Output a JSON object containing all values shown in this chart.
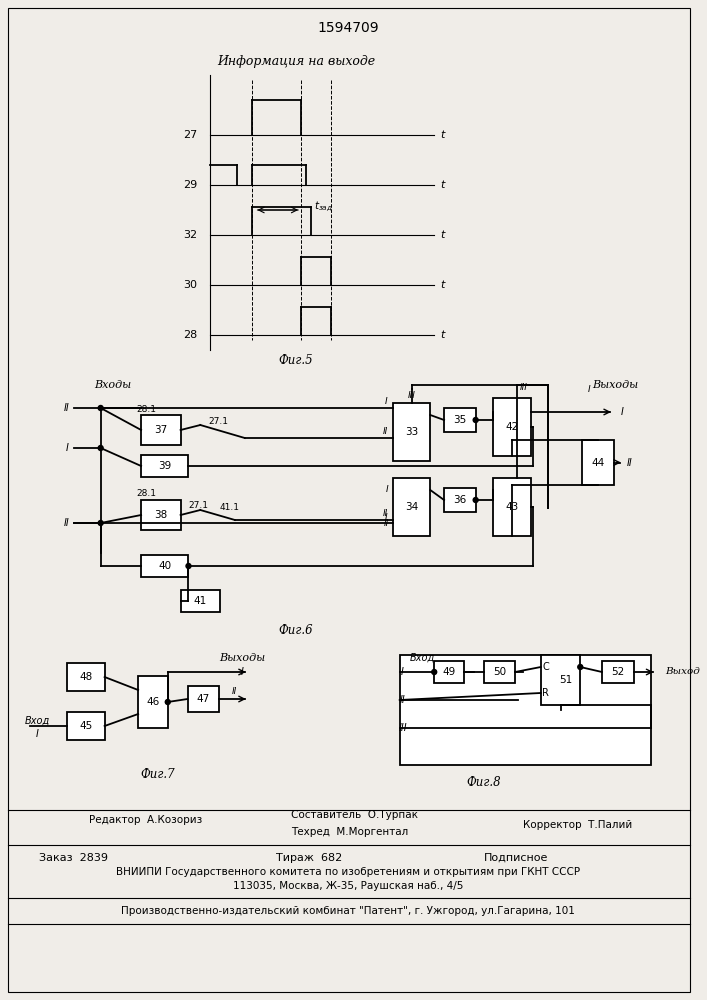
{
  "title": "1594709",
  "fig5_title": "Информация на выходе",
  "fig5_label": "Фиг.5",
  "fig6_label": "Фиг.6",
  "fig7_label": "Фиг.7",
  "fig8_label": "Фиг.8",
  "footer_editor": "Редактор  А.Козориз",
  "footer_comp": "Составитель  О.Турпак",
  "footer_tech": "Техред  М.Моргентал",
  "footer_corr": "Корректор  Т.Палий",
  "footer_order": "Заказ  2839",
  "footer_print": "Тираж  682",
  "footer_sign": "Подписное",
  "footer_vnipi": "ВНИИПИ Государственного комитета по изобретениям и открытиям при ГКНТ СССР",
  "footer_addr": "113035, Москва, Ж-35, Раушская наб., 4/5",
  "footer_patent": "Производственно-издательский комбинат \"Патент\", г. Ужгород, ул.Гагарина, 101",
  "bg_color": "#f0ede8"
}
